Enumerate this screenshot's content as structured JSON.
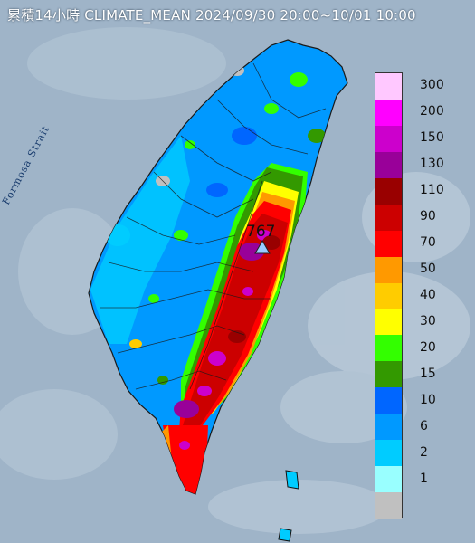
{
  "title": "累積14小時 CLIMATE_MEAN 2024/09/30 20:00~10/01 10:00",
  "strait_label": "Formosa Strait",
  "max_value_label": "767",
  "legend": {
    "items": [
      {
        "label": "300",
        "color": "#ffc8ff"
      },
      {
        "label": "200",
        "color": "#ff00ff"
      },
      {
        "label": "150",
        "color": "#cc00cc"
      },
      {
        "label": "130",
        "color": "#990099"
      },
      {
        "label": "110",
        "color": "#990000"
      },
      {
        "label": "90",
        "color": "#cc0000"
      },
      {
        "label": "70",
        "color": "#ff0000"
      },
      {
        "label": "50",
        "color": "#ff9900"
      },
      {
        "label": "40",
        "color": "#ffcc00"
      },
      {
        "label": "30",
        "color": "#ffff00"
      },
      {
        "label": "20",
        "color": "#33ff00"
      },
      {
        "label": "15",
        "color": "#339900"
      },
      {
        "label": "10",
        "color": "#0066ff"
      },
      {
        "label": "6",
        "color": "#0099ff"
      },
      {
        "label": "2",
        "color": "#00ccff"
      },
      {
        "label": "1",
        "color": "#99ffff"
      },
      {
        "label": "",
        "color": "#c0c0c0"
      }
    ]
  },
  "colors": {
    "sea": "#9fb4c8",
    "land_base": "#0099ff",
    "max_marker": "#99ccff"
  }
}
